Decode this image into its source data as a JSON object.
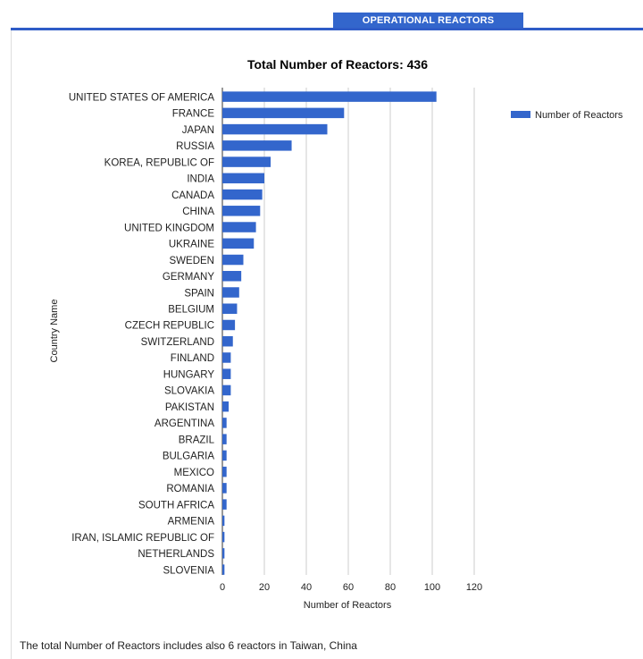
{
  "tab": {
    "label": "OPERATIONAL REACTORS"
  },
  "footnote": "The total Number of Reactors includes also 6 reactors in Taiwan, China",
  "colors": {
    "accent": "#3366cc",
    "bar": "#3366cc",
    "grid": "#cccccc"
  },
  "chart_data": {
    "type": "bar",
    "orientation": "horizontal",
    "title": "Total Number of Reactors: 436",
    "xlabel": "Number of Reactors",
    "ylabel": "Country Name",
    "xlim": [
      0,
      120
    ],
    "xticks": [
      0,
      20,
      40,
      60,
      80,
      100,
      120
    ],
    "grid": true,
    "legend_position": "right",
    "categories": [
      "UNITED STATES OF AMERICA",
      "FRANCE",
      "JAPAN",
      "RUSSIA",
      "KOREA, REPUBLIC OF",
      "INDIA",
      "CANADA",
      "CHINA",
      "UNITED KINGDOM",
      "UKRAINE",
      "SWEDEN",
      "GERMANY",
      "SPAIN",
      "BELGIUM",
      "CZECH REPUBLIC",
      "SWITZERLAND",
      "FINLAND",
      "HUNGARY",
      "SLOVAKIA",
      "PAKISTAN",
      "ARGENTINA",
      "BRAZIL",
      "BULGARIA",
      "MEXICO",
      "ROMANIA",
      "SOUTH AFRICA",
      "ARMENIA",
      "IRAN, ISLAMIC REPUBLIC OF",
      "NETHERLANDS",
      "SLOVENIA"
    ],
    "series": [
      {
        "name": "Number of Reactors",
        "values": [
          102,
          58,
          50,
          33,
          23,
          20,
          19,
          18,
          16,
          15,
          10,
          9,
          8,
          7,
          6,
          5,
          4,
          4,
          4,
          3,
          2,
          2,
          2,
          2,
          2,
          2,
          1,
          1,
          1,
          1
        ]
      }
    ]
  }
}
